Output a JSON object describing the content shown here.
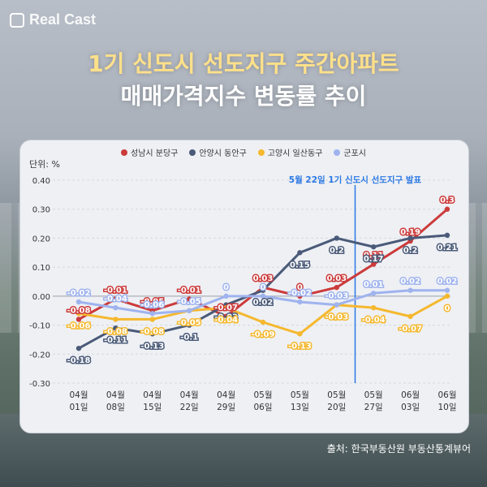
{
  "brand": "Real Cast",
  "title_line1": "1기 신도시 선도지구 주간아파트",
  "title_line2": "매매가격지수 변동률 추이",
  "source": "출처: 한국부동산원 부동산통계뷰어",
  "chart_data": {
    "type": "line",
    "unit_label": "단위: %",
    "categories": [
      "04월 01일",
      "04월 08일",
      "04월 15일",
      "04월 22일",
      "04월 29일",
      "05월 06일",
      "05월 13일",
      "05월 20일",
      "05월 27일",
      "06월 03일",
      "06월 10일"
    ],
    "category_lines": [
      [
        "04월",
        "01일"
      ],
      [
        "04월",
        "08일"
      ],
      [
        "04월",
        "15일"
      ],
      [
        "04월",
        "22일"
      ],
      [
        "04월",
        "29일"
      ],
      [
        "05월",
        "06일"
      ],
      [
        "05월",
        "13일"
      ],
      [
        "05월",
        "20일"
      ],
      [
        "05월",
        "27일"
      ],
      [
        "06월",
        "03일"
      ],
      [
        "06월",
        "10일"
      ]
    ],
    "ylim": [
      -0.3,
      0.4
    ],
    "yticks": [
      "0.40",
      "0.30",
      "0.20",
      "0.10",
      "0.00",
      "-0.10",
      "-0.20",
      "-0.30"
    ],
    "ytick_values": [
      0.4,
      0.3,
      0.2,
      0.1,
      0,
      -0.1,
      -0.2,
      -0.3
    ],
    "annotation": {
      "text": "5월 22일 1기 신도시 선도지구 발표",
      "x_index": 7.5
    },
    "series": [
      {
        "name": "성남시 분당구",
        "color": "#cc3b3b",
        "values": [
          -0.08,
          -0.01,
          -0.05,
          -0.01,
          -0.07,
          0.03,
          0,
          0.03,
          0.11,
          0.19,
          0.3
        ],
        "labels": [
          "-0.08",
          "-0.01",
          "-0.05",
          "-0.01",
          "-0.07",
          "0.03",
          "0",
          "0.03",
          "0.11",
          "0.19",
          "0.3"
        ]
      },
      {
        "name": "안양시 동안구",
        "color": "#4a5a78",
        "values": [
          -0.18,
          -0.11,
          -0.13,
          -0.1,
          -0.03,
          0.02,
          0.15,
          0.2,
          0.17,
          0.2,
          0.21
        ],
        "labels": [
          "-0.18",
          "-0.11",
          "-0.13",
          "-0.1",
          "-0.03",
          "0.02",
          "0.15",
          "0.2",
          "0.17",
          "0.2",
          "0.21"
        ]
      },
      {
        "name": "고양시 일산동구",
        "color": "#f5b82e",
        "values": [
          -0.06,
          -0.08,
          -0.08,
          -0.05,
          -0.04,
          -0.09,
          -0.13,
          -0.03,
          -0.04,
          -0.07,
          0
        ],
        "labels": [
          "-0.06",
          "-0.08",
          "-0.08",
          "-0.05",
          "-0.04",
          "-0.09",
          "-0.13",
          "-0.03",
          "-0.04",
          "-0.07",
          "0"
        ]
      },
      {
        "name": "군포시",
        "color": "#9fb3ee",
        "values": [
          -0.02,
          -0.04,
          -0.06,
          -0.05,
          0,
          0,
          -0.02,
          -0.03,
          0.01,
          0.02,
          0.02
        ],
        "labels": [
          "-0.02",
          "-0.04",
          "-0.06",
          "-0.05",
          "0",
          "0",
          "-0.02",
          "-0.03",
          "0.01",
          "0.02",
          "0.02"
        ]
      }
    ]
  }
}
